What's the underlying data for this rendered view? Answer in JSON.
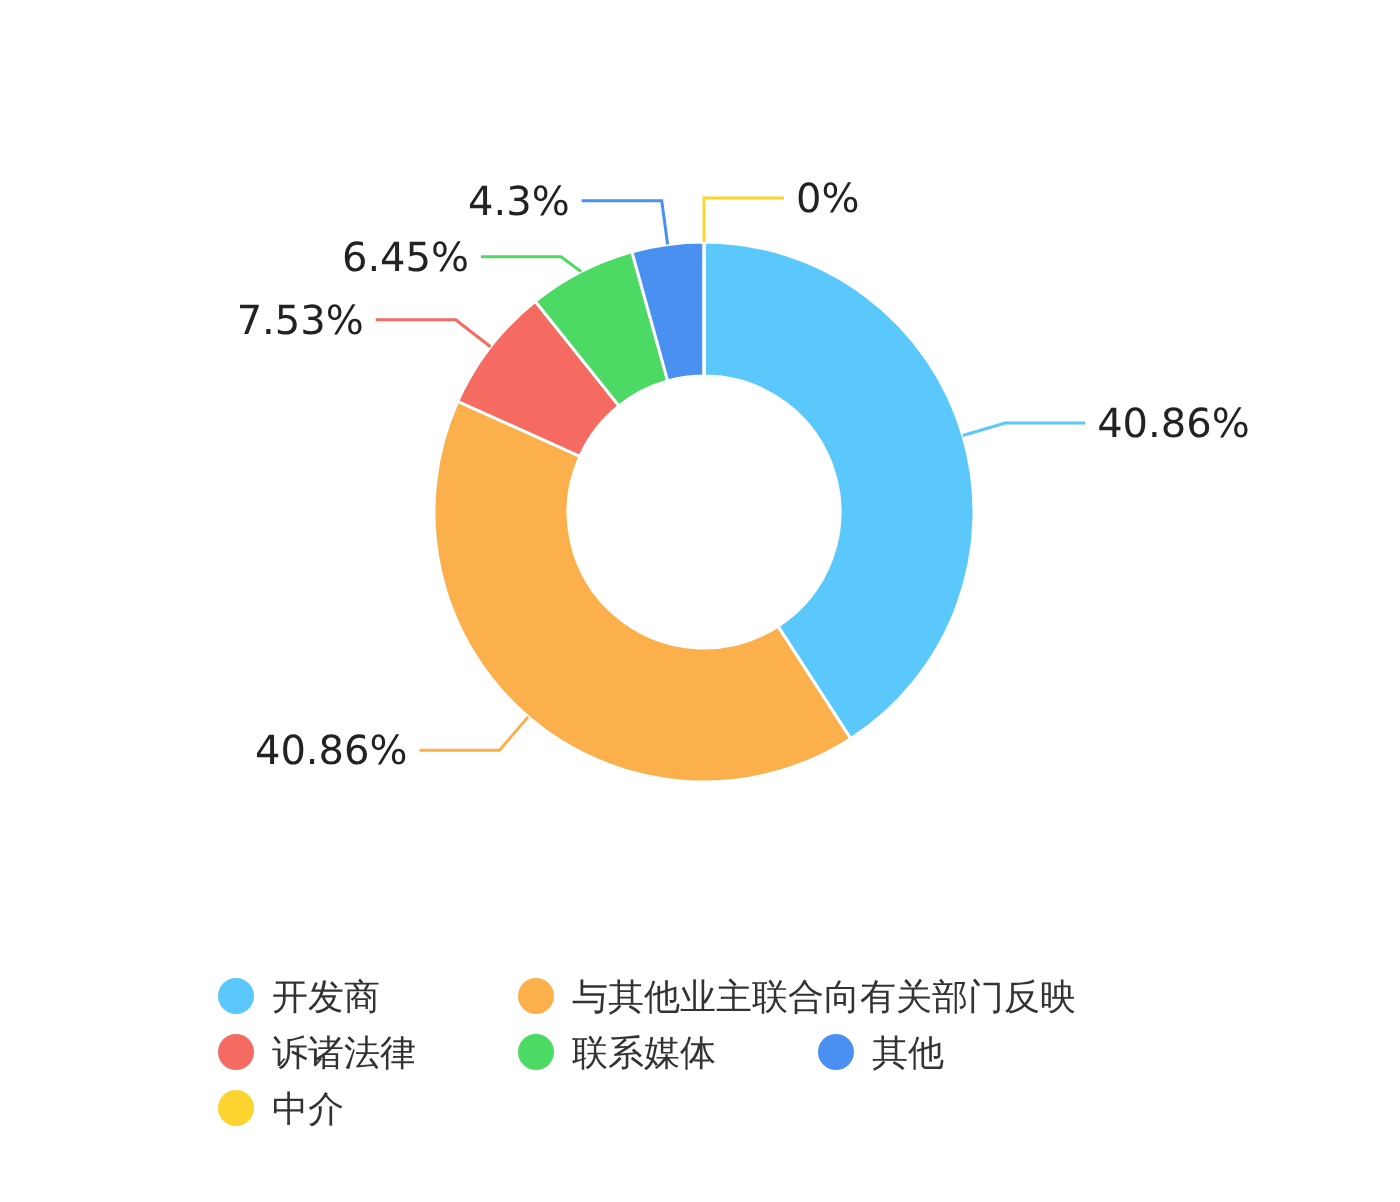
{
  "chart_data": {
    "type": "donut",
    "categories": [
      "开发商",
      "与其他业主联合向有关部门反映",
      "诉诸法律",
      "联系媒体",
      "其他",
      "中介"
    ],
    "values": [
      40.86,
      40.86,
      7.53,
      6.45,
      4.3,
      0
    ],
    "colors": [
      "#5ac8fa",
      "#fbb04c",
      "#f56b61",
      "#4cd964",
      "#4a90f0",
      "#fcd32f"
    ],
    "value_labels": [
      "40.86%",
      "40.86%",
      "7.53%",
      "6.45%",
      "4.3%",
      "0%"
    ],
    "legend": "bottom"
  }
}
